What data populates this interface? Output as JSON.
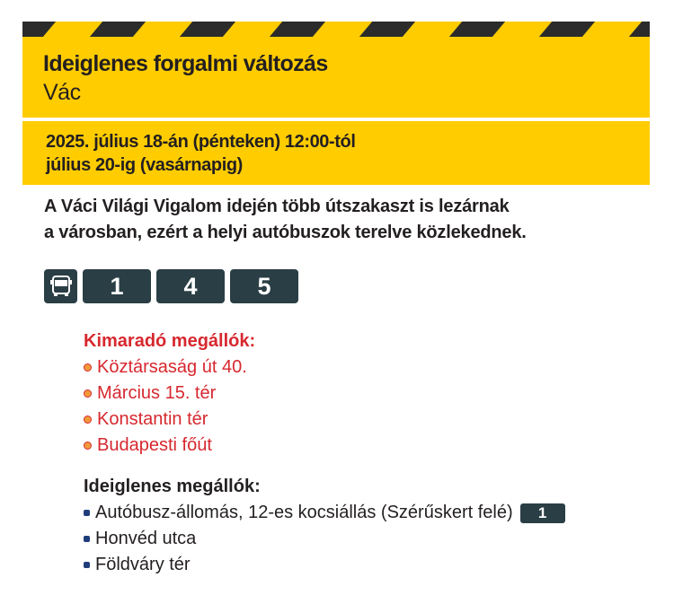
{
  "header": {
    "title": "Ideiglenes forgalmi változás",
    "city": "Vác"
  },
  "period": {
    "line1": "2025. július 18-án (pénteken) 12:00-tól",
    "line2": "július 20-ig (vasárnapig)"
  },
  "intro": {
    "line1": "A Váci Világi Vigalom idején több útszakaszt is lezárnak",
    "line2": "a városban, ezért a helyi autóbuszok terelve közlekednek."
  },
  "lines": {
    "icon": "bus-icon",
    "numbers": [
      "1",
      "4",
      "5"
    ]
  },
  "skipped": {
    "heading": "Kimaradó megállók:",
    "items": [
      "Köztársaság út 40.",
      "Március 15. tér",
      "Konstantin tér",
      "Budapesti főút"
    ]
  },
  "temporary": {
    "heading": "Ideiglenes megállók:",
    "items": [
      {
        "name": "Autóbusz-állomás, 12-es kocsiállás (Szérűskert felé)",
        "line": "1"
      },
      {
        "name": "Honvéd utca"
      },
      {
        "name": "Földváry tér"
      }
    ]
  },
  "colors": {
    "yellow": "#ffcc00",
    "badge": "#2a3e45",
    "red": "#d7282f"
  }
}
